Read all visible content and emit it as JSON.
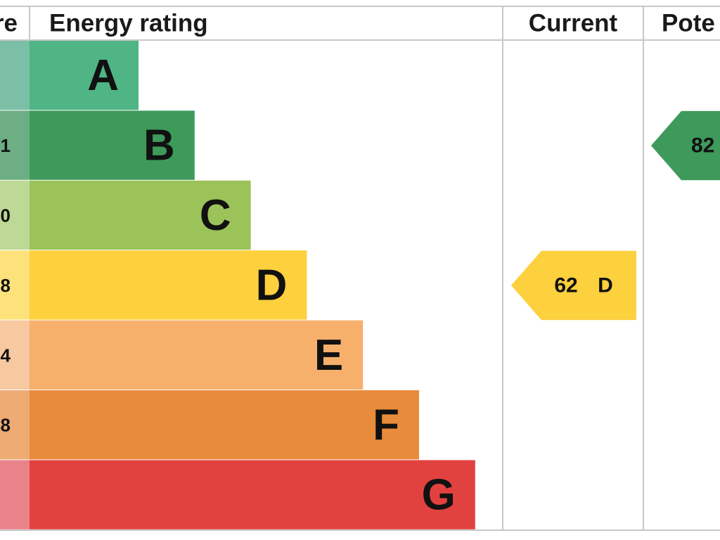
{
  "header": {
    "score": "re",
    "rating": "Energy rating",
    "current": "Current",
    "potential": "Pote"
  },
  "rows": [
    {
      "letter": "A",
      "color": "#4fb585",
      "score_color": "#7bbfa6"
    },
    {
      "letter": "B",
      "score": "1",
      "color": "#3e9a5a",
      "score_color": "#6dae84"
    },
    {
      "letter": "C",
      "score": "0",
      "color": "#9cc25a",
      "score_color": "#bdd995"
    },
    {
      "letter": "D",
      "score": "8",
      "color": "#fdd03e",
      "score_color": "#fde27c"
    },
    {
      "letter": "E",
      "score": "4",
      "color": "#f6b06c",
      "score_color": "#f8c9a1"
    },
    {
      "letter": "F",
      "score": "8",
      "color": "#e88b3a",
      "score_color": "#eeab74"
    },
    {
      "letter": "G",
      "color": "#e2423f",
      "score_color": "#ea828a"
    }
  ],
  "current": {
    "score": 62,
    "band": "D",
    "row": 3
  },
  "potential": {
    "score": 82,
    "row": 1
  }
}
